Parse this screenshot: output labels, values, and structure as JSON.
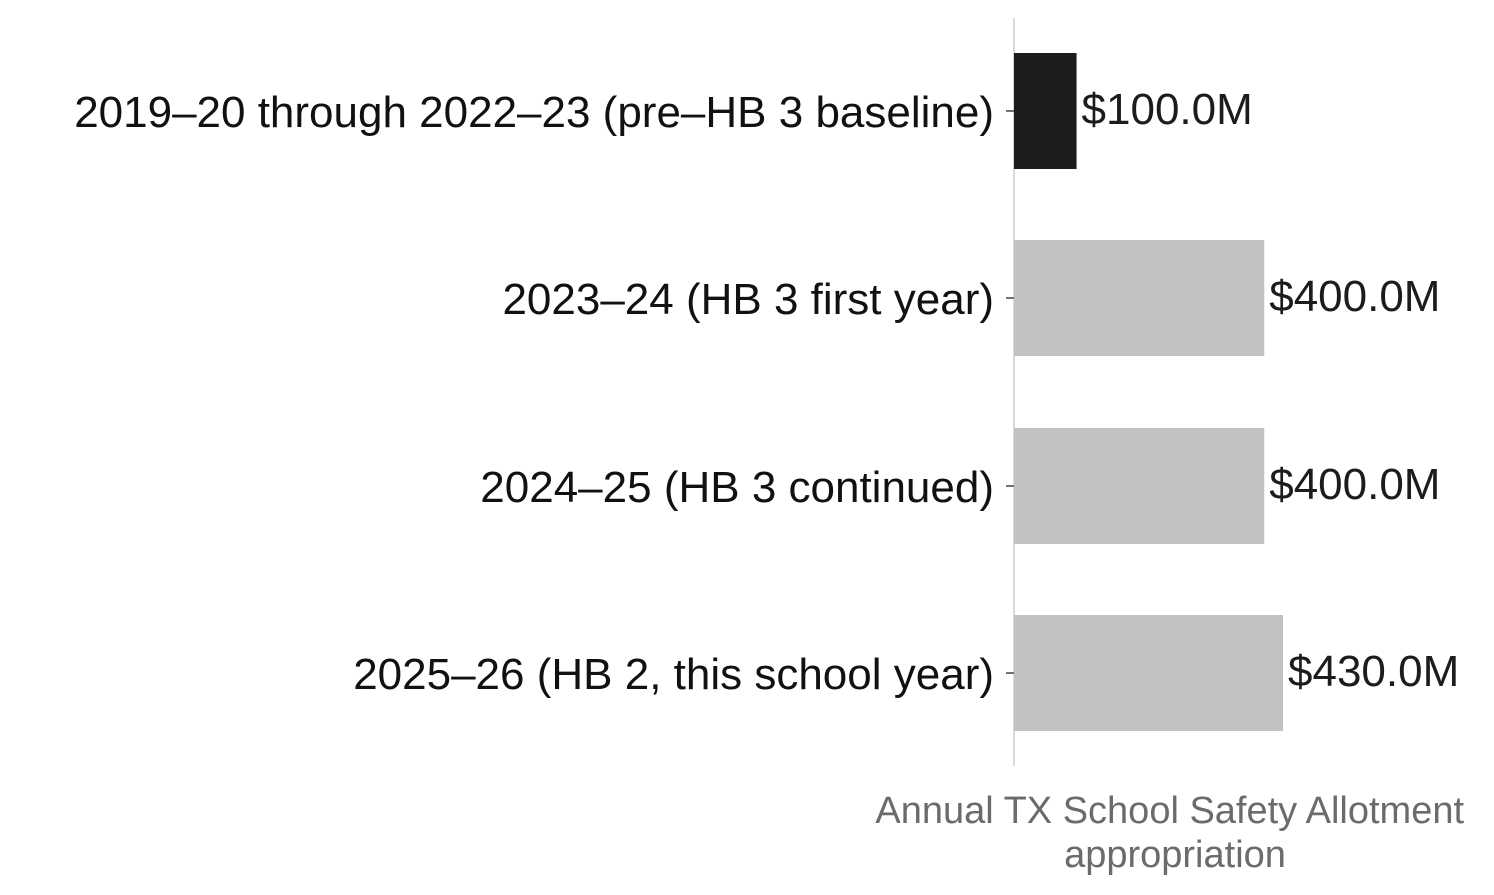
{
  "chart_data": {
    "type": "bar",
    "orientation": "horizontal",
    "categories": [
      "2019–20 through 2022–23 (pre–HB 3 baseline)",
      "2023–24 (HB 3 first year)",
      "2024–25 (HB 3 continued)",
      "2025–26 (HB 2, this school year)"
    ],
    "values": [
      100.0,
      400.0,
      400.0,
      430.0
    ],
    "value_labels": [
      "$100.0M",
      "$400.0M",
      "$400.0M",
      "$430.0M"
    ],
    "bar_colors": [
      "#1c1c1c",
      "#c2c2c2",
      "#c2c2c2",
      "#c2c2c2"
    ],
    "xlim": [
      0,
      430
    ],
    "xlabel": [
      "Annual TX School Safety Allotment",
      "appropriation"
    ],
    "ylabel": "",
    "title": "",
    "grid": false,
    "legend": "none",
    "colors": {
      "highlight": "#1c1c1c",
      "base": "#c2c2c2",
      "axis_line": "#d9d9d9",
      "axis_title": "#6b6b6b",
      "text": "#111111"
    }
  }
}
